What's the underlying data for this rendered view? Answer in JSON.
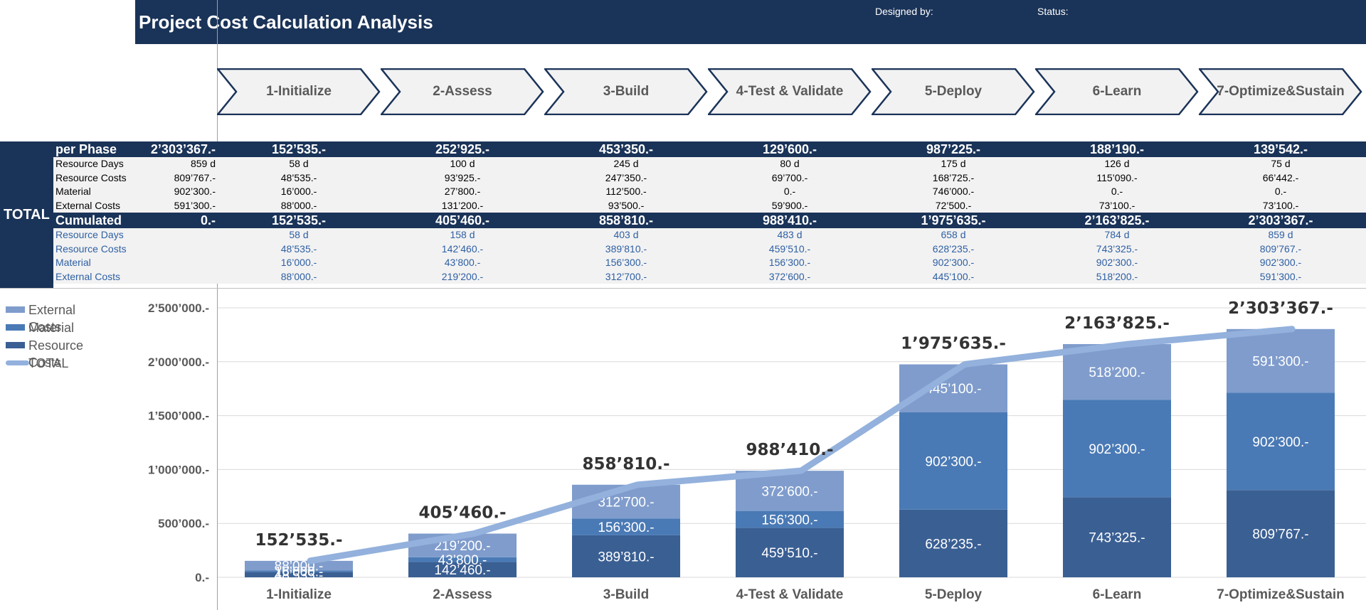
{
  "header": {
    "title": "Project Cost Calculation Analysis",
    "designed_by_label": "Designed by:",
    "status_label": "Status:"
  },
  "phases": [
    "1-Initialize",
    "2-Assess",
    "3-Build",
    "4-Test & Validate",
    "5-Deploy",
    "6-Learn",
    "7-Optimize&Sustain"
  ],
  "table": {
    "total_label": "TOTAL",
    "per_phase": {
      "label": "per Phase",
      "total": "2’303’367.-",
      "values": [
        "152’535.-",
        "252’925.-",
        "453’350.-",
        "129’600.-",
        "987’225.-",
        "188’190.-",
        "139’542.-"
      ],
      "rows": [
        {
          "label": "Resource Days",
          "total": "859 d",
          "values": [
            "58 d",
            "100 d",
            "245 d",
            "80 d",
            "175 d",
            "126 d",
            "75 d"
          ]
        },
        {
          "label": "Resource Costs",
          "total": "809’767.-",
          "values": [
            "48’535.-",
            "93’925.-",
            "247’350.-",
            "69’700.-",
            "168’725.-",
            "115’090.-",
            "66’442.-"
          ]
        },
        {
          "label": "Material",
          "total": "902’300.-",
          "values": [
            "16’000.-",
            "27’800.-",
            "112’500.-",
            "0.-",
            "746’000.-",
            "0.-",
            "0.-"
          ]
        },
        {
          "label": "External Costs",
          "total": "591’300.-",
          "values": [
            "88’000.-",
            "131’200.-",
            "93’500.-",
            "59’900.-",
            "72’500.-",
            "73’100.-",
            "73’100.-"
          ]
        }
      ]
    },
    "cumulated": {
      "label": "Cumulated",
      "total": "0.-",
      "values": [
        "152’535.-",
        "405’460.-",
        "858’810.-",
        "988’410.-",
        "1’975’635.-",
        "2’163’825.-",
        "2’303’367.-"
      ],
      "rows": [
        {
          "label": "Resource Days",
          "values": [
            "58 d",
            "158 d",
            "403 d",
            "483 d",
            "658 d",
            "784 d",
            "859 d"
          ]
        },
        {
          "label": "Resource Costs",
          "values": [
            "48’535.-",
            "142’460.-",
            "389’810.-",
            "459’510.-",
            "628’235.-",
            "743’325.-",
            "809’767.-"
          ]
        },
        {
          "label": "Material",
          "values": [
            "16’000.-",
            "43’800.-",
            "156’300.-",
            "156’300.-",
            "902’300.-",
            "902’300.-",
            "902’300.-"
          ]
        },
        {
          "label": "External Costs",
          "values": [
            "88’000.-",
            "219’200.-",
            "312’700.-",
            "372’600.-",
            "445’100.-",
            "518’200.-",
            "591’300.-"
          ]
        }
      ]
    }
  },
  "colors": {
    "navy": "#1a3358",
    "resource": "#3a5f93",
    "material": "#4a7ab5",
    "external": "#7f9ccc",
    "total_line": "#93b1dc",
    "cum_text": "#2e5fa3"
  },
  "chart_data": {
    "type": "bar",
    "stacked": true,
    "categories": [
      "1-Initialize",
      "2-Assess",
      "3-Build",
      "4-Test & Validate",
      "5-Deploy",
      "6-Learn",
      "7-Optimize&Sustain"
    ],
    "series": [
      {
        "name": "Resource Costs",
        "values": [
          48535,
          142460,
          389810,
          459510,
          628235,
          743325,
          809767
        ],
        "labels": [
          "48’535.-",
          "142’460.-",
          "389’810.-",
          "459’510.-",
          "628’235.-",
          "743’325.-",
          "809’767.-"
        ]
      },
      {
        "name": "Material",
        "values": [
          16000,
          43800,
          156300,
          156300,
          902300,
          902300,
          902300
        ],
        "labels": [
          "16’000.-",
          "43’800.-",
          "156’300.-",
          "156’300.-",
          "902’300.-",
          "902’300.-",
          "902’300.-"
        ]
      },
      {
        "name": "External Costs",
        "values": [
          88000,
          219200,
          312700,
          372600,
          445100,
          518200,
          591300
        ],
        "labels": [
          "88’000.-",
          "219’200.-",
          "312’700.-",
          "372’600.-",
          "445’100.-",
          "518’200.-",
          "591’300.-"
        ]
      }
    ],
    "total_line": {
      "name": "TOTAL",
      "values": [
        152535,
        405460,
        858810,
        988410,
        1975635,
        2163825,
        2303367
      ],
      "labels": [
        "152’535.-",
        "405’460.-",
        "858’810.-",
        "988’410.-",
        "1’975’635.-",
        "2’163’825.-",
        "2’303’367.-"
      ]
    },
    "legend": [
      "External Costs",
      "Material",
      "Resource Costs",
      "TOTAL"
    ],
    "legend_position": "top-left",
    "y_ticks": [
      0,
      500000,
      1000000,
      1500000,
      2000000,
      2500000
    ],
    "y_tick_labels": [
      "0.-",
      "500’000.-",
      "1’000’000.-",
      "1’500’000.-",
      "2’000’000.-",
      "2’500’000.-"
    ],
    "ylim": [
      0,
      2500000
    ],
    "grid": true,
    "title": "",
    "xlabel": "",
    "ylabel": ""
  }
}
